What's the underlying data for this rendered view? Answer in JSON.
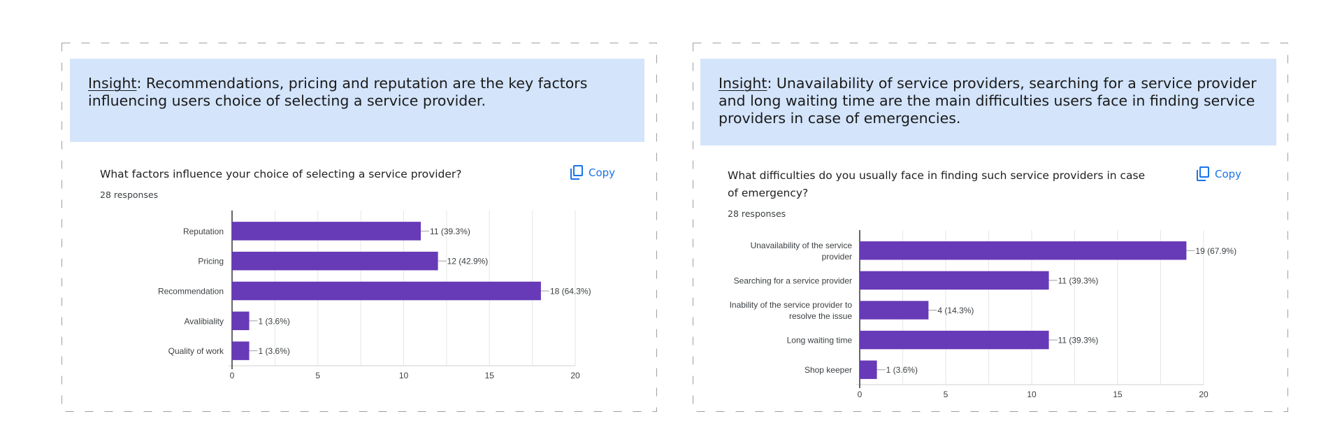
{
  "colors": {
    "bar": "#673ab7",
    "insight_bg": "#d3e4fb",
    "copy_blue": "#1a73e8",
    "grid": "#e6e6e6",
    "axis": "#333333",
    "border_dash": "#9e9e9e"
  },
  "panels": [
    {
      "insight_label": "Insight",
      "insight_text": ": Recommendations, pricing and reputation are the key factors influencing users choice of selecting a service provider.",
      "question": "What factors influence your choice of selecting a service provider?",
      "responses": "28 responses",
      "copy_label": "Copy",
      "copy_icon": "copy-icon"
    },
    {
      "insight_label": "Insight",
      "insight_text": ": Unavailability of service providers, searching for a service provider and long waiting time are the main difficulties users face in finding service providers in case of emergencies.",
      "question": "What difficulties do you usually face in finding such service providers in case of emergency?",
      "responses": "28 responses",
      "copy_label": "Copy",
      "copy_icon": "copy-icon"
    }
  ],
  "chart_data": [
    {
      "type": "bar",
      "orientation": "horizontal",
      "categories": [
        "Reputation",
        "Pricing",
        "Recommendation",
        "Avalibiality",
        "Quality of work"
      ],
      "values": [
        11,
        12,
        18,
        1,
        1
      ],
      "data_labels": [
        "11 (39.3%)",
        "12 (42.9%)",
        "18 (64.3%)",
        "1 (3.6%)",
        "1 (3.6%)"
      ],
      "xlim": [
        0,
        20
      ],
      "xticks": [
        0,
        5,
        10,
        15,
        20
      ],
      "grid": true
    },
    {
      "type": "bar",
      "orientation": "horizontal",
      "categories": [
        [
          "Unavailability of the service",
          "provider"
        ],
        [
          "Searching for a service provider"
        ],
        [
          "Inability of the service provider to",
          "resolve the issue"
        ],
        [
          "Long waiting time"
        ],
        [
          "Shop keeper"
        ]
      ],
      "values": [
        19,
        11,
        4,
        11,
        1
      ],
      "data_labels": [
        "19 (67.9%)",
        "11 (39.3%)",
        "4 (14.3%)",
        "11 (39.3%)",
        "1 (3.6%)"
      ],
      "xlim": [
        0,
        20
      ],
      "xticks": [
        0,
        5,
        10,
        15,
        20
      ],
      "grid": true
    }
  ]
}
